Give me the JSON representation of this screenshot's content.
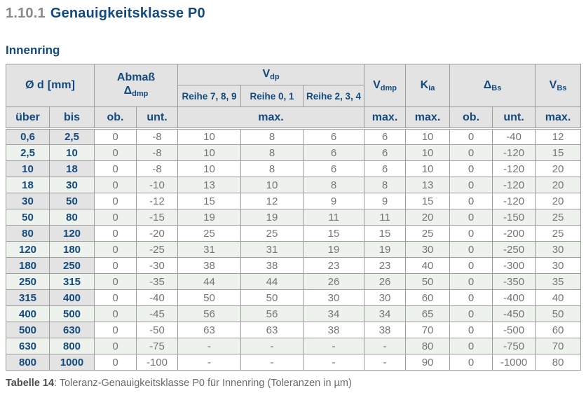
{
  "page": {
    "section_number": "1.10.1",
    "section_title": "Genauigkeitsklasse P0",
    "subtitle": "Innenring",
    "caption_label": "Tabelle 14",
    "caption_text": ": Toleranz-Genauigkeitsklasse P0 für Innenring (Toleranzen in µm)"
  },
  "colors": {
    "accent_blue": "#134a7d",
    "header_gray": "#e3e3e3",
    "stripe_green": "#edf2ec",
    "border_gray": "#9d9d9d",
    "value_gray": "#757575"
  },
  "table": {
    "header": {
      "d_label": "Ø d",
      "d_unit": "[mm]",
      "abmass_label": "Abmaß",
      "abmass_symbol": "Δ",
      "abmass_sub": "dmp",
      "vdp_symbol": "V",
      "vdp_sub": "dp",
      "reihe": [
        "Reihe 7, 8, 9",
        "Reihe 0, 1",
        "Reihe 2, 3, 4"
      ],
      "vdmp_symbol": "V",
      "vdmp_sub": "dmp",
      "kia_symbol": "K",
      "kia_sub": "ia",
      "dbs_symbol": "Δ",
      "dbs_sub": "Bs",
      "vbs_symbol": "V",
      "vbs_sub": "Bs",
      "sub": {
        "ueber": "über",
        "bis": "bis",
        "ob": "ob.",
        "unt": "unt.",
        "max": "max."
      }
    },
    "rows": [
      [
        "0,6",
        "2,5",
        "0",
        "-8",
        "10",
        "8",
        "6",
        "6",
        "10",
        "0",
        "-40",
        "12"
      ],
      [
        "2,5",
        "10",
        "0",
        "-8",
        "10",
        "8",
        "6",
        "6",
        "10",
        "0",
        "-120",
        "15"
      ],
      [
        "10",
        "18",
        "0",
        "-8",
        "10",
        "8",
        "6",
        "6",
        "10",
        "0",
        "-120",
        "20"
      ],
      [
        "18",
        "30",
        "0",
        "-10",
        "13",
        "10",
        "8",
        "8",
        "13",
        "0",
        "-120",
        "20"
      ],
      [
        "30",
        "50",
        "0",
        "-12",
        "15",
        "12",
        "9",
        "9",
        "15",
        "0",
        "-120",
        "20"
      ],
      [
        "50",
        "80",
        "0",
        "-15",
        "19",
        "19",
        "11",
        "11",
        "20",
        "0",
        "-150",
        "25"
      ],
      [
        "80",
        "120",
        "0",
        "-20",
        "25",
        "25",
        "15",
        "15",
        "25",
        "0",
        "-200",
        "25"
      ],
      [
        "120",
        "180",
        "0",
        "-25",
        "31",
        "31",
        "19",
        "19",
        "30",
        "0",
        "-250",
        "30"
      ],
      [
        "180",
        "250",
        "0",
        "-30",
        "38",
        "38",
        "23",
        "23",
        "40",
        "0",
        "-300",
        "30"
      ],
      [
        "250",
        "315",
        "0",
        "-35",
        "44",
        "44",
        "26",
        "26",
        "50",
        "0",
        "-350",
        "35"
      ],
      [
        "315",
        "400",
        "0",
        "-40",
        "50",
        "50",
        "30",
        "30",
        "60",
        "0",
        "-400",
        "40"
      ],
      [
        "400",
        "500",
        "0",
        "-45",
        "56",
        "56",
        "34",
        "34",
        "65",
        "0",
        "-450",
        "50"
      ],
      [
        "500",
        "630",
        "0",
        "-50",
        "63",
        "63",
        "38",
        "38",
        "70",
        "0",
        "-500",
        "60"
      ],
      [
        "630",
        "800",
        "0",
        "-75",
        "-",
        "-",
        "-",
        "-",
        "80",
        "0",
        "-750",
        "70"
      ],
      [
        "800",
        "1000",
        "0",
        "-100",
        "-",
        "-",
        "-",
        "-",
        "90",
        "0",
        "-1000",
        "80"
      ]
    ]
  }
}
